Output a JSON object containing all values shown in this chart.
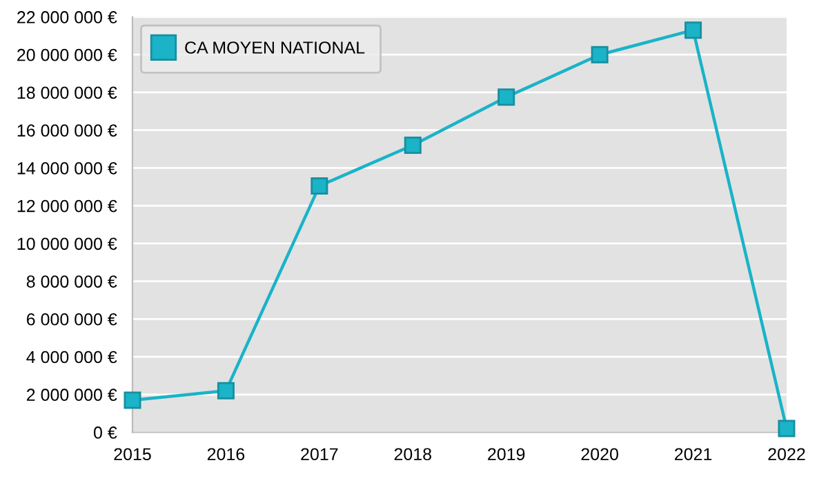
{
  "chart_data": {
    "type": "line",
    "categories": [
      "2015",
      "2016",
      "2017",
      "2018",
      "2019",
      "2020",
      "2021",
      "2022"
    ],
    "series": [
      {
        "name": "CA MOYEN NATIONAL",
        "color": "#1ab3c8",
        "values": [
          1700000,
          2200000,
          13050000,
          15200000,
          17750000,
          20000000,
          21300000,
          200000
        ]
      }
    ],
    "ylim": [
      0,
      22000000
    ],
    "yticks": [
      {
        "value": 0,
        "label": "0 €"
      },
      {
        "value": 2000000,
        "label": "2 000 000 €"
      },
      {
        "value": 4000000,
        "label": "4 000 000 €"
      },
      {
        "value": 6000000,
        "label": "6 000 000 €"
      },
      {
        "value": 8000000,
        "label": "8 000 000 €"
      },
      {
        "value": 10000000,
        "label": "10 000 000 €"
      },
      {
        "value": 12000000,
        "label": "12 000 000 €"
      },
      {
        "value": 14000000,
        "label": "14 000 000 €"
      },
      {
        "value": 16000000,
        "label": "16 000 000 €"
      },
      {
        "value": 18000000,
        "label": "18 000 000 €"
      },
      {
        "value": 20000000,
        "label": "20 000 000 €"
      },
      {
        "value": 22000000,
        "label": "22 000 000 €"
      }
    ],
    "grid": "y",
    "legend": "top left",
    "marker": "square",
    "line_style": "solid"
  }
}
